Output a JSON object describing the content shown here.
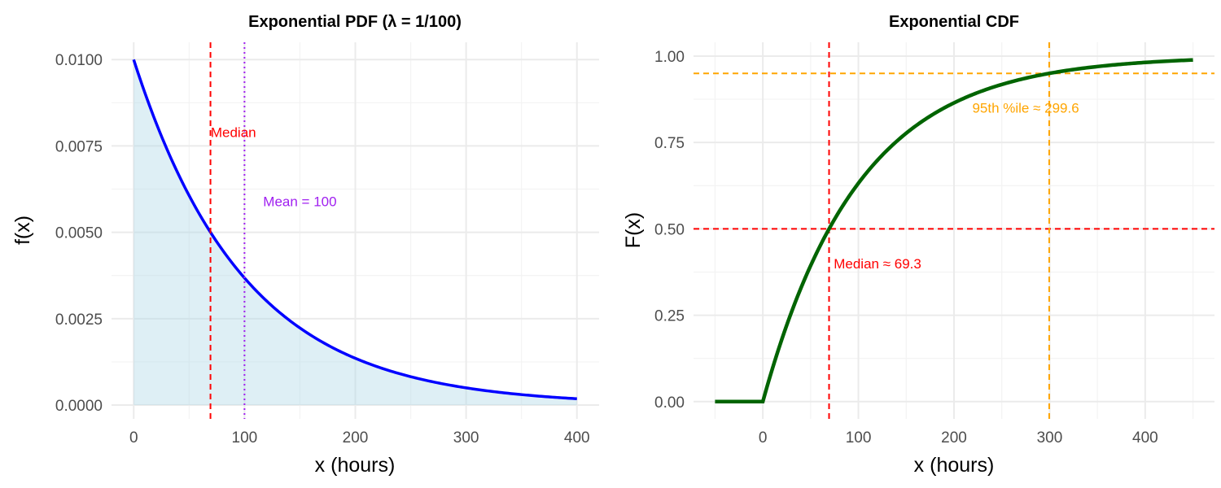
{
  "colors": {
    "pdf_fill": "#add8e6",
    "pdf_line": "#0000ff",
    "cdf_line": "#006400",
    "median": "#ff0000",
    "mean": "#a020f0",
    "p95": "#ffa500"
  },
  "chart_data": [
    {
      "type": "area",
      "title": "Exponential PDF (λ = 1/100)",
      "xlabel": "x (hours)",
      "ylabel": "f(x)",
      "rate": 0.01,
      "x": [
        0,
        25,
        50,
        75,
        100,
        125,
        150,
        175,
        200,
        225,
        250,
        275,
        300,
        325,
        350,
        375,
        400
      ],
      "y": [
        0.01,
        0.007788,
        0.006065,
        0.004724,
        0.003679,
        0.002865,
        0.002231,
        0.001738,
        0.001353,
        0.001054,
        0.000821,
        0.000639,
        0.000498,
        0.000388,
        0.000302,
        0.000235,
        0.000183
      ],
      "xlim": [
        -20,
        420
      ],
      "ylim": [
        -0.0004,
        0.0105
      ],
      "xticks": [
        0,
        100,
        200,
        300,
        400
      ],
      "xtick_labels": [
        "0",
        "100",
        "200",
        "300",
        "400"
      ],
      "yticks": [
        0,
        0.0025,
        0.005,
        0.0075,
        0.01
      ],
      "ytick_labels": [
        "0.0000",
        "0.0025",
        "0.0050",
        "0.0075",
        "0.0100"
      ],
      "grid": true,
      "vlines": [
        {
          "x": 69.3,
          "style": "dashed",
          "color_key": "median"
        },
        {
          "x": 100,
          "style": "dotted",
          "color_key": "mean"
        }
      ],
      "annotations": [
        {
          "text": "Median",
          "x": 90,
          "y": 0.0079,
          "color_key": "median"
        },
        {
          "text": "Mean = 100",
          "x": 150,
          "y": 0.0059,
          "color_key": "mean"
        }
      ]
    },
    {
      "type": "line",
      "title": "Exponential CDF",
      "xlabel": "x (hours)",
      "ylabel": "F(x)",
      "x": [
        -50,
        0,
        25,
        50,
        75,
        100,
        125,
        150,
        175,
        200,
        225,
        250,
        275,
        300,
        325,
        350,
        375,
        400,
        425,
        450
      ],
      "y": [
        0,
        0,
        0.2212,
        0.3935,
        0.5276,
        0.6321,
        0.7135,
        0.7769,
        0.8262,
        0.8647,
        0.8946,
        0.9179,
        0.9361,
        0.9502,
        0.9612,
        0.9698,
        0.9765,
        0.9817,
        0.9857,
        0.9889
      ],
      "xlim": [
        -72.5,
        472.5
      ],
      "ylim": [
        -0.05,
        1.04
      ],
      "xticks": [
        0,
        100,
        200,
        300,
        400
      ],
      "xtick_labels": [
        "0",
        "100",
        "200",
        "300",
        "400"
      ],
      "yticks": [
        0,
        0.25,
        0.5,
        0.75,
        1.0
      ],
      "ytick_labels": [
        "0.00",
        "0.25",
        "0.50",
        "0.75",
        "1.00"
      ],
      "grid": true,
      "vlines": [
        {
          "x": 69.3,
          "style": "dashed",
          "color_key": "median"
        },
        {
          "x": 299.6,
          "style": "dashed",
          "color_key": "p95"
        }
      ],
      "hlines": [
        {
          "y": 0.5,
          "style": "dashed",
          "color_key": "median"
        },
        {
          "y": 0.95,
          "style": "dashed",
          "color_key": "p95"
        }
      ],
      "annotations": [
        {
          "text": "Median ≈ 69.3",
          "x": 120,
          "y": 0.4,
          "color_key": "median"
        },
        {
          "text": "95th %ile ≈ 299.6",
          "x": 275,
          "y": 0.85,
          "color_key": "p95"
        }
      ]
    }
  ]
}
